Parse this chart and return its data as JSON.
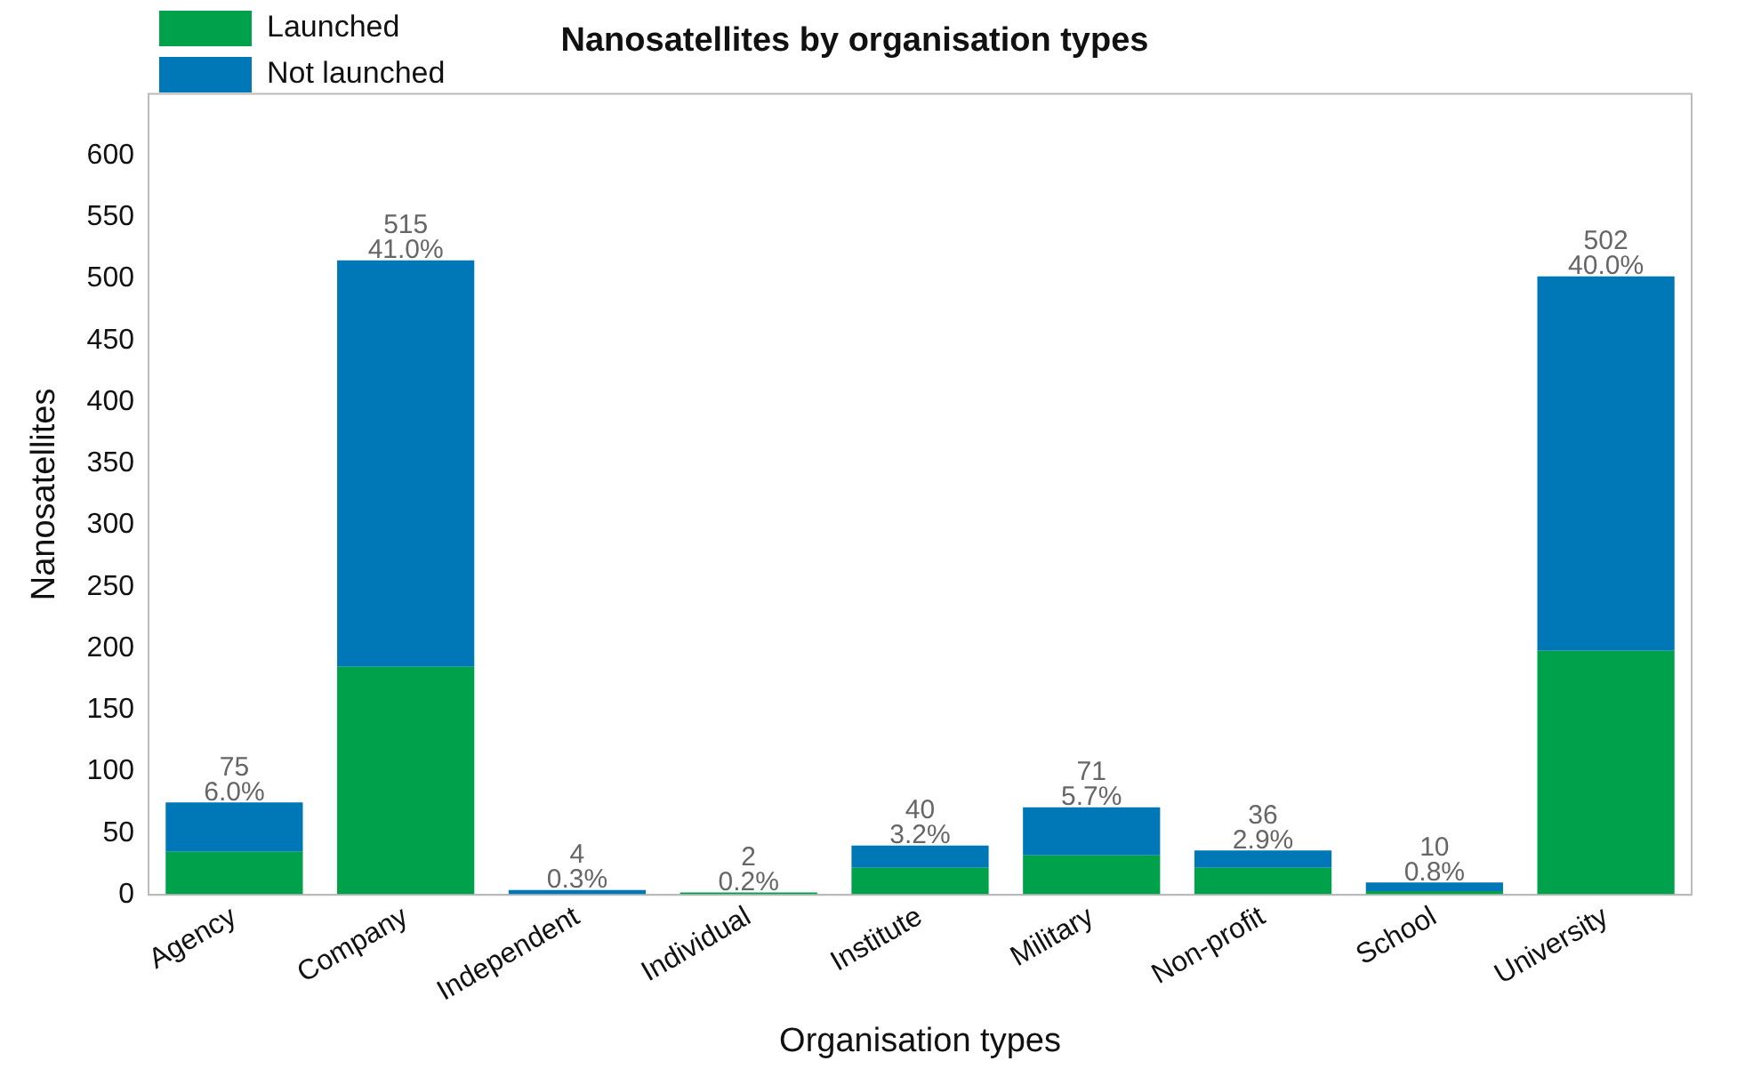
{
  "chart_data": {
    "type": "bar",
    "title": "Nanosatellites by organisation types",
    "xlabel": "Organisation types",
    "ylabel": "Nanosatellites",
    "categories": [
      "Agency",
      "Company",
      "Independent",
      "Individual",
      "Institute",
      "Military",
      "Non-profit",
      "School",
      "University"
    ],
    "series": [
      {
        "name": "Launched",
        "color": "#00a14b",
        "values": [
          35,
          185,
          0,
          2,
          22,
          32,
          22,
          3,
          198
        ]
      },
      {
        "name": "Not launched",
        "color": "#0077b6",
        "values": [
          40,
          330,
          4,
          0,
          18,
          39,
          14,
          7,
          304
        ]
      }
    ],
    "stacked": true,
    "totals": [
      "75\n6.0%",
      "515\n41.0%",
      "4\n0.3%",
      "2\n0.2%",
      "40\n3.2%",
      "71\n5.7%",
      "36\n2.9%",
      "10\n0.8%",
      "502\n40.0%"
    ],
    "ylim": [
      0,
      650
    ],
    "yticks": [
      0,
      50,
      100,
      150,
      200,
      250,
      300,
      350,
      400,
      450,
      500,
      550,
      600
    ],
    "grid": false,
    "legend": "top left"
  }
}
